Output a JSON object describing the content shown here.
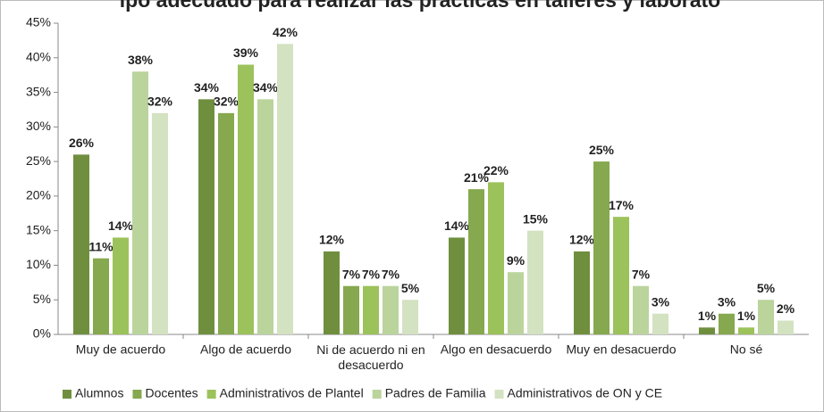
{
  "chart_data": {
    "type": "bar",
    "title": "ipo adecuado para realizar las prácticas en talleres y laborato",
    "categories": [
      "Muy de acuerdo",
      "Algo de acuerdo",
      "Ni de acuerdo ni en desacuerdo",
      "Algo en desacuerdo",
      "Muy en desacuerdo",
      "No sé"
    ],
    "series": [
      {
        "name": "Alumnos",
        "color": "#6f8f3f",
        "values": [
          26,
          34,
          12,
          14,
          12,
          1
        ],
        "value_labels": [
          "26%",
          "34%",
          "12%",
          "14%",
          "12%",
          "1%"
        ]
      },
      {
        "name": "Docentes",
        "color": "#86a84e",
        "values": [
          11,
          32,
          7,
          21,
          25,
          3
        ],
        "value_labels": [
          "11%",
          "32%",
          "7%",
          "21%",
          "25%",
          "3%"
        ]
      },
      {
        "name": "Administrativos de Plantel",
        "color": "#9cc25b",
        "values": [
          14,
          39,
          7,
          22,
          17,
          1
        ],
        "value_labels": [
          "14%",
          "39%",
          "7%",
          "22%",
          "17%",
          "1%"
        ]
      },
      {
        "name": "Padres de Familia",
        "color": "#bad49c",
        "values": [
          38,
          34,
          7,
          9,
          7,
          5
        ],
        "value_labels": [
          "38%",
          "34%",
          "7%",
          "9%",
          "7%",
          "5%"
        ]
      },
      {
        "name": "Administrativos de ON y CE",
        "color": "#d3e2c1",
        "values": [
          32,
          42,
          5,
          15,
          3,
          2
        ],
        "value_labels": [
          "32%",
          "42%",
          "5%",
          "15%",
          "3%",
          "2%"
        ]
      }
    ],
    "ylim": [
      0,
      45
    ],
    "yticks": [
      {
        "value": 0,
        "label": "0%"
      },
      {
        "value": 5,
        "label": "5%"
      },
      {
        "value": 10,
        "label": "10%"
      },
      {
        "value": 15,
        "label": "15%"
      },
      {
        "value": 20,
        "label": "20%"
      },
      {
        "value": 25,
        "label": "25%"
      },
      {
        "value": 30,
        "label": "30%"
      },
      {
        "value": 35,
        "label": "35%"
      },
      {
        "value": 40,
        "label": "40%"
      },
      {
        "value": 45,
        "label": "45%"
      }
    ],
    "legend": "bottom"
  }
}
